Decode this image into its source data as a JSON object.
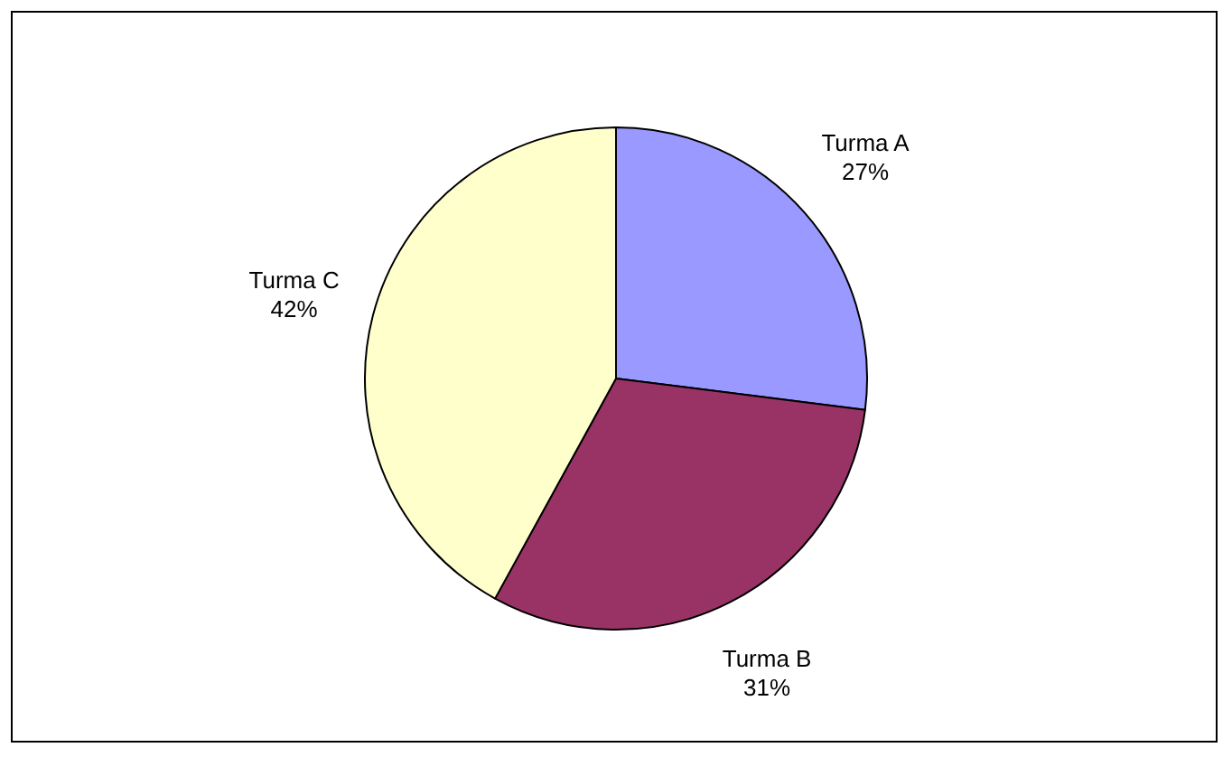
{
  "chart_data": {
    "type": "pie",
    "categories": [
      "Turma A",
      "Turma B",
      "Turma C"
    ],
    "values": [
      27,
      31,
      42
    ],
    "colors": [
      "#9999ff",
      "#993366",
      "#ffffcc"
    ],
    "value_labels": [
      "27%",
      "31%",
      "42%"
    ],
    "legend": false
  }
}
